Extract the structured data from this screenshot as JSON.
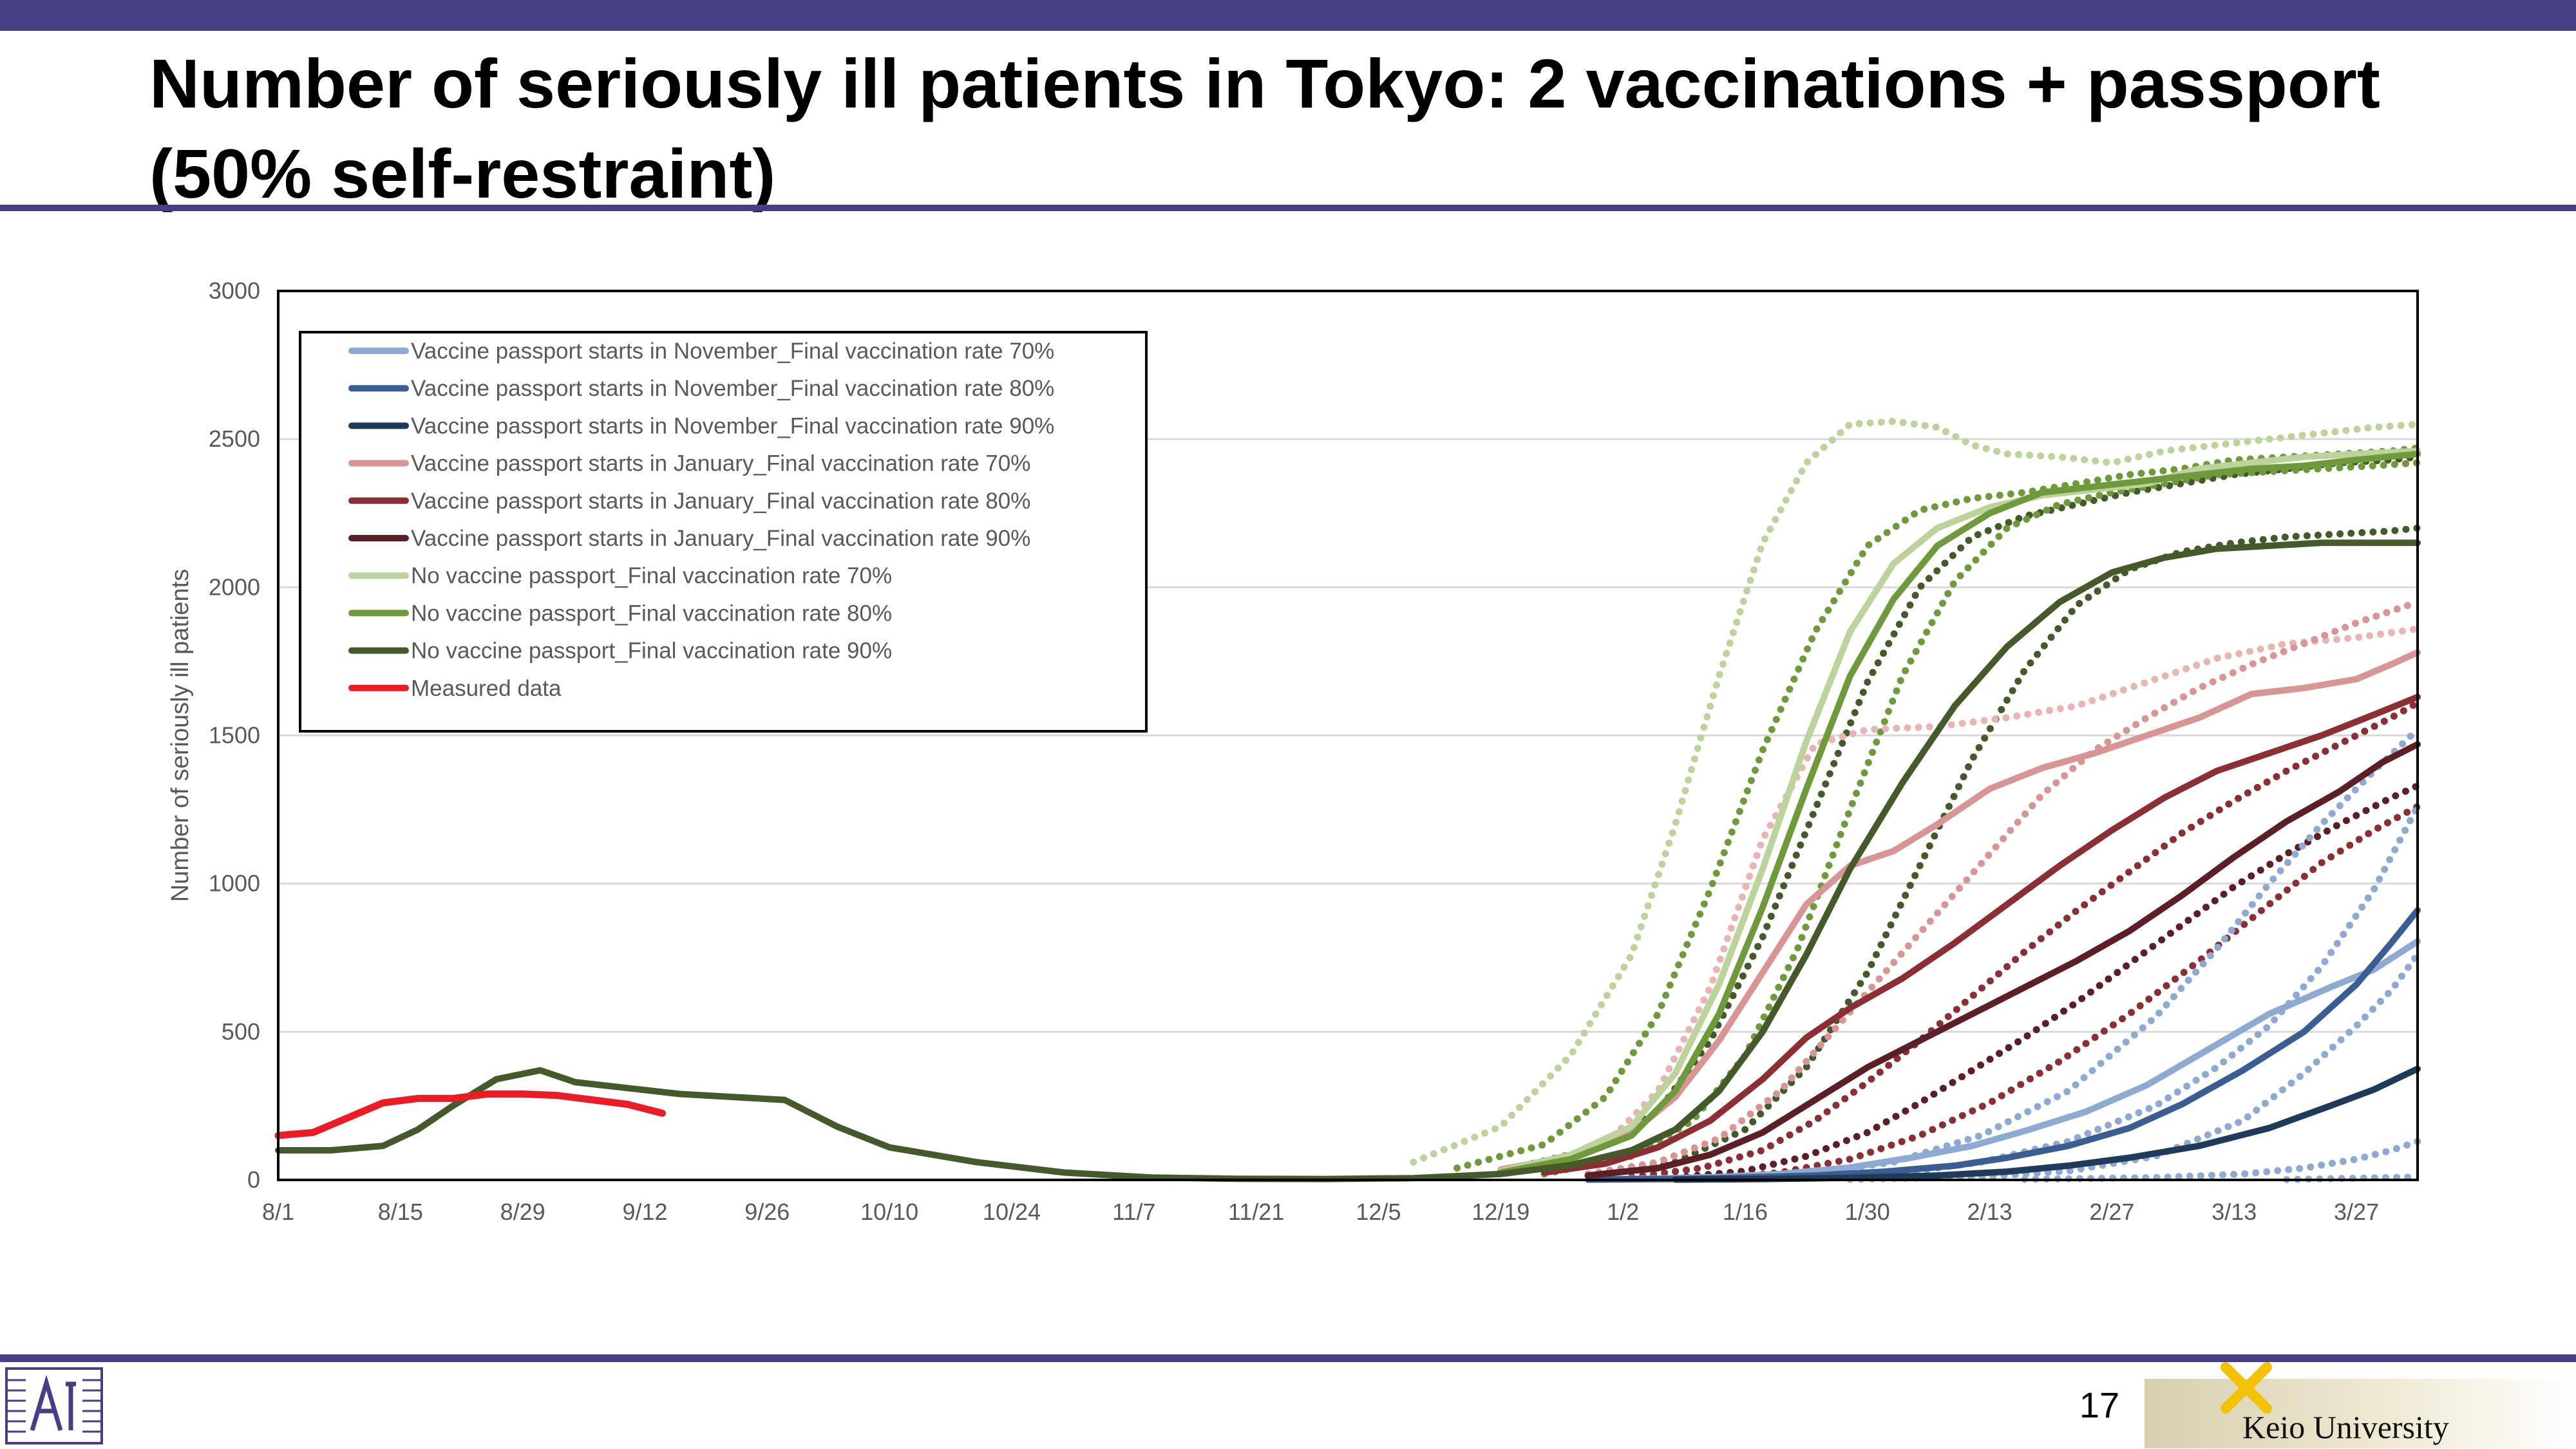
{
  "slide": {
    "title": "Number of seriously ill patients in Tokyo: 2 vaccinations + passport (50% self-restraint)",
    "page_number": "17",
    "university": "Keio University",
    "accent_color": "#463f86"
  },
  "chart_data": {
    "type": "line",
    "title": "",
    "xlabel": "",
    "ylabel": "Number of seriously ill patients",
    "ylim": [
      0,
      3000
    ],
    "y_ticks": [
      0,
      500,
      1000,
      1500,
      2000,
      2500,
      3000
    ],
    "x_tick_labels": [
      "8/1",
      "8/15",
      "8/29",
      "9/12",
      "9/26",
      "10/10",
      "10/24",
      "11/7",
      "11/21",
      "12/5",
      "12/19",
      "1/2",
      "1/16",
      "1/30",
      "2/13",
      "2/27",
      "3/13",
      "3/27"
    ],
    "x_tick_days": [
      0,
      14,
      28,
      42,
      56,
      70,
      84,
      98,
      112,
      126,
      140,
      154,
      168,
      182,
      196,
      210,
      224,
      238
    ],
    "x_range_days": [
      0,
      245
    ],
    "grid": true,
    "legend_position": "top-left",
    "series": [
      {
        "name": "Vaccine passport starts in November_Final vaccination rate 70%",
        "color": "#8eaad2",
        "width": 10,
        "days": [
          150,
          158,
          165,
          172,
          180,
          187,
          194,
          200,
          207,
          214,
          221,
          228,
          235,
          240,
          245
        ],
        "values": [
          2,
          5,
          10,
          20,
          42,
          75,
          115,
          165,
          230,
          320,
          440,
          560,
          650,
          710,
          805
        ]
      },
      {
        "name": "Vaccine passport starts in November_Final vaccination rate 80%",
        "color": "#3a5e94",
        "width": 10,
        "days": [
          150,
          160,
          168,
          176,
          184,
          192,
          198,
          205,
          212,
          218,
          225,
          232,
          238,
          242,
          245
        ],
        "values": [
          1,
          3,
          8,
          15,
          28,
          48,
          75,
          115,
          175,
          255,
          370,
          500,
          660,
          800,
          910
        ]
      },
      {
        "name": "Vaccine passport starts in November_Final vaccination rate 90%",
        "color": "#1f3b5c",
        "width": 10,
        "days": [
          160,
          170,
          180,
          190,
          198,
          205,
          212,
          220,
          228,
          235,
          240,
          245
        ],
        "values": [
          1,
          3,
          7,
          15,
          28,
          48,
          75,
          115,
          175,
          250,
          305,
          375
        ]
      },
      {
        "name": "Vaccine passport starts in January_Final vaccination rate 70%",
        "color": "#d99494",
        "width": 10,
        "days": [
          140,
          148,
          155,
          160,
          165,
          170,
          175,
          180,
          185,
          190,
          196,
          202,
          208,
          214,
          220,
          226,
          232,
          238,
          242,
          245
        ],
        "values": [
          35,
          80,
          160,
          280,
          470,
          700,
          930,
          1060,
          1110,
          1200,
          1320,
          1390,
          1440,
          1500,
          1560,
          1640,
          1660,
          1690,
          1740,
          1780
        ]
      },
      {
        "name": "Vaccine passport starts in January_Final vaccination rate 80%",
        "color": "#8c2f35",
        "width": 10,
        "days": [
          145,
          152,
          158,
          164,
          170,
          175,
          180,
          186,
          192,
          198,
          204,
          210,
          216,
          222,
          228,
          234,
          240,
          245
        ],
        "values": [
          25,
          55,
          110,
          200,
          340,
          480,
          580,
          680,
          800,
          930,
          1060,
          1180,
          1290,
          1380,
          1440,
          1500,
          1570,
          1630
        ]
      },
      {
        "name": "Vaccine passport starts in January_Final vaccination rate 90%",
        "color": "#5c1f25",
        "width": 10,
        "days": [
          150,
          158,
          164,
          170,
          176,
          182,
          188,
          194,
          200,
          206,
          212,
          218,
          224,
          230,
          236,
          241,
          245
        ],
        "values": [
          15,
          40,
          85,
          160,
          270,
          380,
          470,
          560,
          650,
          740,
          840,
          960,
          1090,
          1210,
          1310,
          1410,
          1470
        ]
      },
      {
        "name": "No vaccine passport_Final vaccination rate 70%",
        "color": "#bcd39b",
        "width": 10,
        "days": [
          140,
          148,
          155,
          160,
          165,
          170,
          175,
          180,
          185,
          190,
          196,
          202,
          208,
          214,
          220,
          226,
          232,
          238,
          245
        ],
        "values": [
          30,
          85,
          180,
          360,
          660,
          1050,
          1480,
          1850,
          2080,
          2200,
          2270,
          2310,
          2330,
          2350,
          2400,
          2420,
          2440,
          2450,
          2460
        ]
      },
      {
        "name": "No vaccine passport_Final vaccination rate 80%",
        "color": "#6f9a3c",
        "width": 10,
        "days": [
          140,
          148,
          155,
          160,
          165,
          170,
          175,
          180,
          185,
          190,
          196,
          202,
          208,
          214,
          220,
          226,
          232,
          238,
          245
        ],
        "values": [
          25,
          70,
          150,
          300,
          560,
          920,
          1320,
          1700,
          1960,
          2140,
          2250,
          2320,
          2340,
          2360,
          2380,
          2400,
          2410,
          2430,
          2450
        ]
      },
      {
        "name": "No vaccine passport_Final vaccination rate 90%",
        "color": "#455a2a",
        "width": 10,
        "days": [
          0,
          6,
          12,
          16,
          20,
          25,
          30,
          34,
          40,
          46,
          52,
          58,
          64,
          70,
          80,
          90,
          100,
          110,
          120,
          130,
          140,
          148,
          155,
          160,
          165,
          170,
          175,
          180,
          186,
          192,
          198,
          204,
          210,
          216,
          222,
          228,
          234,
          240,
          245
        ],
        "values": [
          100,
          100,
          115,
          170,
          250,
          340,
          370,
          330,
          310,
          290,
          280,
          270,
          180,
          110,
          60,
          25,
          8,
          4,
          3,
          6,
          20,
          50,
          100,
          170,
          300,
          500,
          760,
          1050,
          1340,
          1600,
          1800,
          1950,
          2050,
          2100,
          2130,
          2140,
          2150,
          2150,
          2150
        ]
      },
      {
        "name": "Measured data",
        "color": "#ec1c24",
        "width": 11,
        "days": [
          0,
          4,
          8,
          12,
          16,
          20,
          24,
          28,
          32,
          36,
          40,
          44
        ],
        "values": [
          150,
          160,
          210,
          260,
          275,
          275,
          290,
          290,
          285,
          270,
          255,
          225
        ]
      },
      {
        "name": "",
        "color": "#bcd39b",
        "width": 9,
        "dotted": true,
        "days": [
          130,
          140,
          148,
          155,
          160,
          165,
          170,
          175,
          180,
          185,
          190,
          194,
          198,
          204,
          210,
          216,
          222,
          228,
          234,
          240,
          245
        ],
        "values": [
          60,
          180,
          420,
          760,
          1200,
          1700,
          2150,
          2420,
          2550,
          2560,
          2540,
          2480,
          2450,
          2440,
          2420,
          2460,
          2480,
          2500,
          2520,
          2540,
          2550
        ]
      },
      {
        "name": "",
        "color": "#6f9a3c",
        "width": 9,
        "dotted": true,
        "days": [
          135,
          145,
          152,
          158,
          164,
          170,
          176,
          182,
          188,
          194,
          200,
          206,
          212,
          218,
          224,
          230,
          236,
          242,
          245
        ],
        "values": [
          40,
          120,
          280,
          560,
          980,
          1450,
          1850,
          2140,
          2260,
          2300,
          2320,
          2350,
          2380,
          2400,
          2430,
          2440,
          2450,
          2460,
          2470
        ]
      },
      {
        "name": "",
        "color": "#455a2a",
        "width": 9,
        "dotted": true,
        "days": [
          140,
          150,
          158,
          164,
          170,
          176,
          182,
          188,
          194,
          200,
          206,
          212,
          218,
          224,
          230,
          236,
          242,
          245
        ],
        "values": [
          30,
          100,
          230,
          470,
          820,
          1250,
          1680,
          2000,
          2170,
          2240,
          2280,
          2320,
          2350,
          2380,
          2400,
          2420,
          2430,
          2440
        ]
      },
      {
        "name": "",
        "color": "#6f9a3c",
        "width": 9,
        "dotted": true,
        "days": [
          145,
          155,
          162,
          168,
          174,
          180,
          186,
          192,
          198,
          204,
          210,
          216,
          222,
          228,
          234,
          240,
          245
        ],
        "values": [
          20,
          80,
          200,
          420,
          780,
          1250,
          1700,
          2020,
          2200,
          2280,
          2320,
          2350,
          2380,
          2390,
          2400,
          2410,
          2420
        ]
      },
      {
        "name": "",
        "color": "#455a2a",
        "width": 9,
        "dotted": true,
        "days": [
          150,
          160,
          168,
          175,
          182,
          188,
          194,
          200,
          206,
          212,
          218,
          224,
          230,
          236,
          242,
          245
        ],
        "values": [
          15,
          60,
          170,
          380,
          700,
          1060,
          1420,
          1720,
          1940,
          2060,
          2120,
          2150,
          2170,
          2180,
          2190,
          2200
        ]
      },
      {
        "name": "",
        "color": "#e8b4b4",
        "width": 9,
        "dotted": true,
        "days": [
          145,
          152,
          158,
          164,
          170,
          176,
          182,
          190,
          198,
          206,
          214,
          222,
          230,
          238,
          245
        ],
        "values": [
          40,
          120,
          300,
          650,
          1150,
          1470,
          1520,
          1530,
          1560,
          1600,
          1680,
          1760,
          1810,
          1830,
          1860
        ]
      },
      {
        "name": "",
        "color": "#d99494",
        "width": 9,
        "dotted": true,
        "days": [
          150,
          158,
          165,
          172,
          178,
          184,
          190,
          196,
          202,
          208,
          214,
          220,
          226,
          232,
          238,
          245
        ],
        "values": [
          20,
          60,
          140,
          300,
          500,
          700,
          900,
          1100,
          1300,
          1450,
          1560,
          1660,
          1740,
          1810,
          1880,
          1950
        ]
      },
      {
        "name": "",
        "color": "#8c2f35",
        "width": 9,
        "dotted": true,
        "days": [
          155,
          163,
          170,
          176,
          182,
          188,
          194,
          200,
          206,
          212,
          218,
          224,
          230,
          236,
          242,
          245
        ],
        "values": [
          10,
          40,
          100,
          200,
          330,
          470,
          620,
          770,
          910,
          1040,
          1170,
          1280,
          1380,
          1470,
          1560,
          1610
        ]
      },
      {
        "name": "",
        "color": "#5c1f25",
        "width": 9,
        "dotted": true,
        "days": [
          160,
          168,
          175,
          182,
          188,
          194,
          200,
          206,
          212,
          218,
          224,
          230,
          236,
          242,
          245
        ],
        "values": [
          8,
          30,
          80,
          160,
          260,
          370,
          480,
          600,
          730,
          860,
          990,
          1100,
          1200,
          1290,
          1330
        ]
      },
      {
        "name": "",
        "color": "#8c2f35",
        "width": 9,
        "dotted": true,
        "days": [
          165,
          172,
          180,
          188,
          196,
          204,
          212,
          220,
          228,
          234,
          240,
          245
        ],
        "values": [
          6,
          25,
          70,
          150,
          260,
          400,
          560,
          740,
          930,
          1070,
          1180,
          1260
        ]
      },
      {
        "name": "",
        "color": "#8eaad2",
        "width": 9,
        "dotted": true,
        "days": [
          165,
          175,
          185,
          195,
          205,
          215,
          222,
          228,
          234,
          240,
          245
        ],
        "values": [
          4,
          20,
          60,
          150,
          300,
          550,
          780,
          1000,
          1200,
          1380,
          1520
        ]
      },
      {
        "name": "",
        "color": "#8eaad2",
        "width": 9,
        "dotted": true,
        "days": [
          175,
          185,
          195,
          205,
          215,
          222,
          228,
          234,
          240,
          245
        ],
        "values": [
          5,
          20,
          60,
          130,
          250,
          380,
          520,
          720,
          980,
          1260
        ]
      },
      {
        "name": "",
        "color": "#8eaad2",
        "width": 9,
        "dotted": true,
        "days": [
          180,
          195,
          205,
          215,
          225,
          232,
          238,
          242,
          245
        ],
        "values": [
          2,
          10,
          30,
          80,
          200,
          360,
          520,
          640,
          760
        ]
      },
      {
        "name": "",
        "color": "#8eaad2",
        "width": 9,
        "dotted": true,
        "days": [
          200,
          215,
          225,
          232,
          238,
          242,
          245
        ],
        "values": [
          2,
          8,
          20,
          40,
          70,
          100,
          130
        ]
      },
      {
        "name": "",
        "color": "#8eaad2",
        "width": 9,
        "dotted": true,
        "days": [
          230,
          245
        ],
        "values": [
          1,
          10
        ]
      }
    ]
  }
}
